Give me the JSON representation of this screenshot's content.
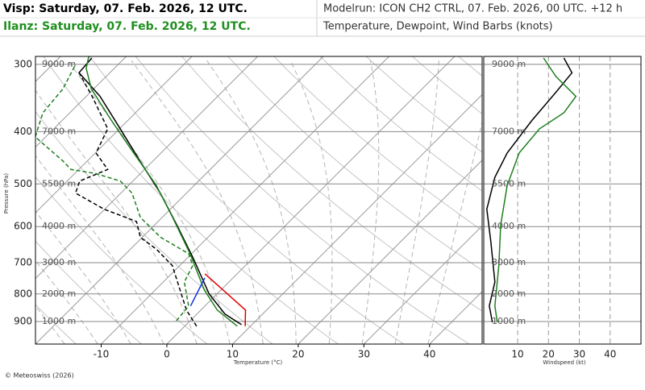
{
  "header": {
    "station1": "Visp: Saturday, 07. Feb. 2026, 12 UTC.",
    "station2": "Ilanz: Saturday, 07. Feb. 2026, 12 UTC.",
    "modelrun": "Modelrun: ICON CH2 CTRL, 07. Feb. 2026, 00 UTC. +12 h",
    "content": "Temperature, Dewpoint, Wind Barbs (knots)"
  },
  "footer": {
    "copyright": "© Meteoswiss (2026)"
  },
  "chart_data": [
    {
      "type": "skewt",
      "xlabel": "Temperature (°C)",
      "ylabel": "Pressure (hPa)",
      "xlim": [
        -20,
        48
      ],
      "ylim": [
        991,
        290
      ],
      "yscale": "log",
      "xticks": [
        -10,
        0,
        10,
        20,
        30,
        40
      ],
      "yticks": [
        300,
        400,
        500,
        600,
        700,
        800,
        900
      ],
      "height_ticks": [
        {
          "value": 300,
          "label": "9000 m"
        },
        {
          "value": 400,
          "label": "7000 m"
        },
        {
          "value": 500,
          "label": "5500 m"
        },
        {
          "value": 600,
          "label": "4000 m"
        },
        {
          "value": 700,
          "label": "3000 m"
        },
        {
          "value": 800,
          "label": "2000 m"
        },
        {
          "value": 900,
          "label": "1000 m"
        }
      ],
      "grid": true,
      "series": [
        {
          "color": "#000000",
          "dash": false,
          "pressure": [
            912,
            872,
            800,
            685,
            596,
            520,
            454,
            395,
            344,
            311,
            292
          ],
          "values": [
            8.4,
            4.3,
            -1.2,
            -9.2,
            -16.6,
            -24.0,
            -31.9,
            -39.9,
            -47.9,
            -54.7,
            -55.0
          ]
        },
        {
          "color": "#1f7f1f",
          "dash": false,
          "pressure": [
            918,
            857,
            787,
            674,
            577,
            503,
            432,
            382,
            333,
            305,
            290
          ],
          "values": [
            8.0,
            2.5,
            -2.5,
            -10.2,
            -18.4,
            -25.8,
            -35.0,
            -42.4,
            -50.4,
            -54.3,
            -55.7
          ]
        },
        {
          "color": "#000000",
          "dash": true,
          "pressure": [
            918,
            857,
            709,
            661,
            628,
            587,
            557,
            520,
            494,
            470,
            438,
            395,
            344,
            311
          ],
          "values": [
            1.8,
            -2.2,
            -11.1,
            -16.0,
            -20.3,
            -23.3,
            -30.1,
            -36.9,
            -38.1,
            -35.6,
            -39.9,
            -41.8,
            -49.1,
            -54.7
          ]
        },
        {
          "color": "#1f7f1f",
          "dash": true,
          "pressure": [
            897,
            842,
            760,
            709,
            674,
            628,
            577,
            520,
            494,
            478,
            470,
            454,
            409,
            369,
            333,
            300
          ],
          "values": [
            -2.1,
            -2.5,
            -6.8,
            -8.0,
            -10.4,
            -17.2,
            -23.3,
            -28.3,
            -31.9,
            -36.9,
            -41.2,
            -43.6,
            -51.6,
            -54.1,
            -54.7,
            -56.5
          ]
        },
        {
          "color": "#e00000",
          "dash": false,
          "pressure": [
            918,
            857,
            734
          ],
          "values": [
            9.2,
            6.8,
            -4.9
          ]
        },
        {
          "color": "#1030e0",
          "dash": false,
          "pressure": [
            747,
            842
          ],
          "values": [
            -4.3,
            -2.2
          ]
        }
      ]
    },
    {
      "type": "profile",
      "xlabel": "Windspeed (kt)",
      "xlim": [
        -1,
        50
      ],
      "ylim": [
        991,
        290
      ],
      "yscale": "log",
      "xticks": [
        10,
        20,
        30,
        40
      ],
      "grid": true,
      "series": [
        {
          "color": "#000000",
          "pressure": [
            903,
            842,
            760,
            640,
            557,
            486,
            438,
            382,
            338,
            311,
            292
          ],
          "values": [
            1.8,
            0.8,
            2.6,
            1.3,
            0,
            2.6,
            6.6,
            14.5,
            22.4,
            27.6,
            25
          ]
        },
        {
          "color": "#1f7f1f",
          "pressure": [
            903,
            842,
            709,
            596,
            503,
            438,
            395,
            369,
            344,
            316,
            292
          ],
          "values": [
            3.4,
            2.6,
            3.9,
            4.5,
            6.6,
            10.5,
            17.1,
            25,
            28.9,
            22.4,
            18.4
          ]
        }
      ]
    }
  ]
}
